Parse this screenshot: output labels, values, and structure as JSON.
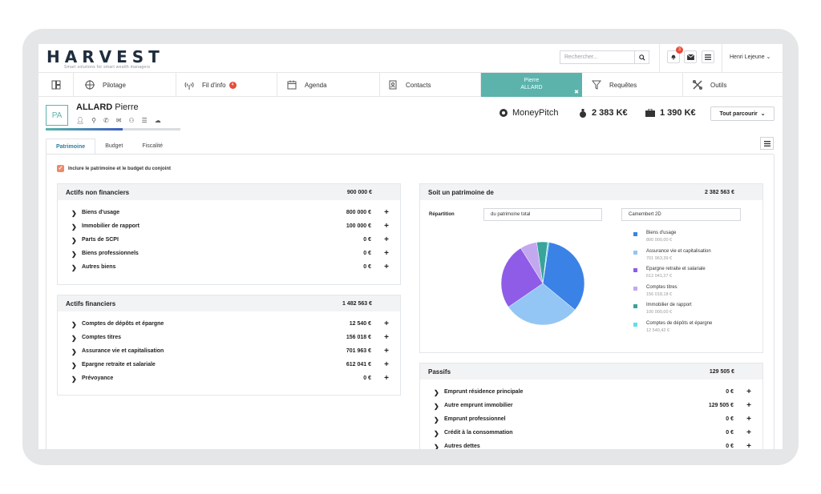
{
  "header": {
    "logo": "HARVEST",
    "tagline": "Smart solutions for smart wealth managers",
    "search_placeholder": "Rechercher...",
    "notif_count": "3",
    "user": "Henri Lejeune"
  },
  "nav": {
    "items": [
      {
        "label": "Pilotage",
        "icon": "target-icon"
      },
      {
        "label": "Fil d'info",
        "icon": "antenna-icon",
        "badge": "4"
      },
      {
        "label": "Agenda",
        "icon": "calendar-icon"
      },
      {
        "label": "Contacts",
        "icon": "contacts-icon"
      },
      {
        "label": "Requêtes",
        "icon": "filter-icon"
      },
      {
        "label": "Outils",
        "icon": "tools-icon"
      }
    ],
    "active_first": "Pierre",
    "active_last": "ALLARD"
  },
  "client": {
    "initials": "PA",
    "last_name": "ALLARD",
    "first_name": "Pierre",
    "moneypitch": "MoneyPitch",
    "gross": "2 383 K€",
    "net": "1 390 K€",
    "parcourir": "Tout parcourir",
    "progress": 0.57
  },
  "tabs": [
    "Patrimoine",
    "Budget",
    "Fiscalité"
  ],
  "checkbox_label": "Inclure le patrimoine et le budget du conjoint",
  "actifs_non_financiers": {
    "title": "Actifs non financiers",
    "total": "900 000 €",
    "rows": [
      {
        "label": "Biens d'usage",
        "value": "800 000 €"
      },
      {
        "label": "Immobilier de rapport",
        "value": "100 000 €"
      },
      {
        "label": "Parts de SCPI",
        "value": "0 €"
      },
      {
        "label": "Biens professionnels",
        "value": "0 €"
      },
      {
        "label": "Autres biens",
        "value": "0 €"
      }
    ]
  },
  "actifs_financiers": {
    "title": "Actifs financiers",
    "total": "1 482 563 €",
    "rows": [
      {
        "label": "Comptes de dépôts et épargne",
        "value": "12 540 €"
      },
      {
        "label": "Comptes titres",
        "value": "156 018 €"
      },
      {
        "label": "Assurance vie et capitalisation",
        "value": "701 963 €"
      },
      {
        "label": "Epargne retraite et salariale",
        "value": "612 041 €"
      },
      {
        "label": "Prévoyance",
        "value": "0 €"
      }
    ]
  },
  "patrimoine": {
    "title": "Soit un patrimoine de",
    "total": "2 382 563 €",
    "repartition_label": "Répartition",
    "repartition_value": "du patrimoine total",
    "chart_type": "Camembert 2D"
  },
  "chart_data": {
    "type": "pie",
    "slices": [
      {
        "name": "Biens d'usage",
        "value": 800000.0,
        "display": "800 000,00 €",
        "color": "#3b82e6"
      },
      {
        "name": "Assurance vie et capitalisation",
        "value": 701963.39,
        "display": "701 963,39 €",
        "color": "#93c6f4"
      },
      {
        "name": "Epargne retraite et salariale",
        "value": 612041.27,
        "display": "612 041,27 €",
        "color": "#8f5ce8"
      },
      {
        "name": "Comptes titres",
        "value": 156018.18,
        "display": "156 018,18 €",
        "color": "#c3a8f0"
      },
      {
        "name": "Immobilier de rapport",
        "value": 100000.0,
        "display": "100 000,00 €",
        "color": "#3aa39a"
      },
      {
        "name": "Comptes de dépôts et épargne",
        "value": 12540.42,
        "display": "12 540,42 €",
        "color": "#5fe0e6"
      }
    ],
    "legend_position": "right"
  },
  "passifs": {
    "title": "Passifs",
    "total": "129 505 €",
    "rows": [
      {
        "label": "Emprunt résidence principale",
        "value": "0 €"
      },
      {
        "label": "Autre emprunt immobilier",
        "value": "129 505 €"
      },
      {
        "label": "Emprunt professionnel",
        "value": "0 €"
      },
      {
        "label": "Crédit à la consommation",
        "value": "0 €"
      },
      {
        "label": "Autres dettes",
        "value": "0 €"
      }
    ]
  }
}
